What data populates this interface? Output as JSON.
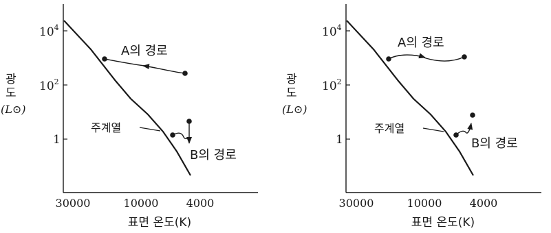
{
  "diagrams": [
    {
      "id": "left",
      "y_axis_label": {
        "text_vertical": [
          "광",
          "도"
        ],
        "unit": "(L⊙)"
      },
      "y_ticks": [
        {
          "base": "10",
          "exp": "4"
        },
        {
          "base": "10",
          "exp": "2"
        },
        {
          "base": "1",
          "exp": ""
        }
      ],
      "x_ticks": [
        "30000",
        "10000",
        "4000"
      ],
      "x_axis_label": "표면 온도(K)",
      "main_sequence_label": "주계열",
      "path_a_label": "A의 경로",
      "path_b_label": "B의 경로"
    },
    {
      "id": "right",
      "y_axis_label": {
        "text_vertical": [
          "광",
          "도"
        ],
        "unit": "(L⊙)"
      },
      "y_ticks": [
        {
          "base": "10",
          "exp": "4"
        },
        {
          "base": "10",
          "exp": "2"
        },
        {
          "base": "1",
          "exp": ""
        }
      ],
      "x_ticks": [
        "30000",
        "10000",
        "4000"
      ],
      "x_axis_label": "표면 온도(K)",
      "main_sequence_label": "주계열",
      "path_a_label": "A의 경로",
      "path_b_label": "B의 경로"
    }
  ],
  "colors": {
    "ink": "#1a1a1a",
    "background": "#ffffff"
  }
}
